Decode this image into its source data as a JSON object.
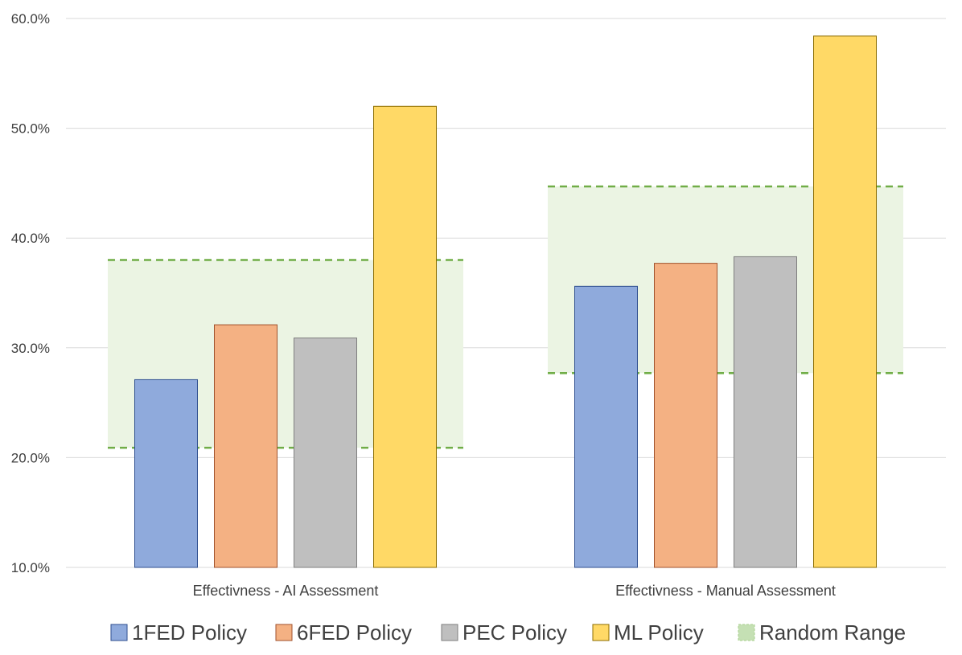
{
  "chart_data": {
    "type": "bar",
    "title": "",
    "xlabel": "",
    "ylabel": "",
    "ylim": [
      0.1,
      0.6
    ],
    "yticks": [
      {
        "value": 0.1,
        "label": "10.0%"
      },
      {
        "value": 0.2,
        "label": "20.0%"
      },
      {
        "value": 0.3,
        "label": "30.0%"
      },
      {
        "value": 0.4,
        "label": "40.0%"
      },
      {
        "value": 0.5,
        "label": "50.0%"
      },
      {
        "value": 0.6,
        "label": "60.0%"
      }
    ],
    "grid": true,
    "categories": [
      "Effectivness - AI Assessment",
      "Effectivness - Manual Assessment"
    ],
    "series": [
      {
        "name": "1FED Policy",
        "values": [
          0.271,
          0.356
        ],
        "color": "#8FAADC",
        "stroke": "#2F4F8F"
      },
      {
        "name": "6FED Policy",
        "values": [
          0.321,
          0.377
        ],
        "color": "#F4B183",
        "stroke": "#A0522D"
      },
      {
        "name": "PEC Policy",
        "values": [
          0.309,
          0.383
        ],
        "color": "#BFBFBF",
        "stroke": "#7F7F7F"
      },
      {
        "name": "ML Policy",
        "values": [
          0.52,
          0.584
        ],
        "color": "#FFD966",
        "stroke": "#8C6D00"
      }
    ],
    "random_range": {
      "name": "Random Range",
      "ranges": [
        [
          0.209,
          0.38
        ],
        [
          0.277,
          0.447
        ]
      ],
      "fill": "#EBF4E3",
      "line_color": "#70AD47"
    },
    "legend": {
      "placement": "bottom",
      "items": [
        "1FED Policy",
        "6FED Policy",
        "PEC Policy",
        "ML Policy",
        "Random Range"
      ]
    }
  }
}
